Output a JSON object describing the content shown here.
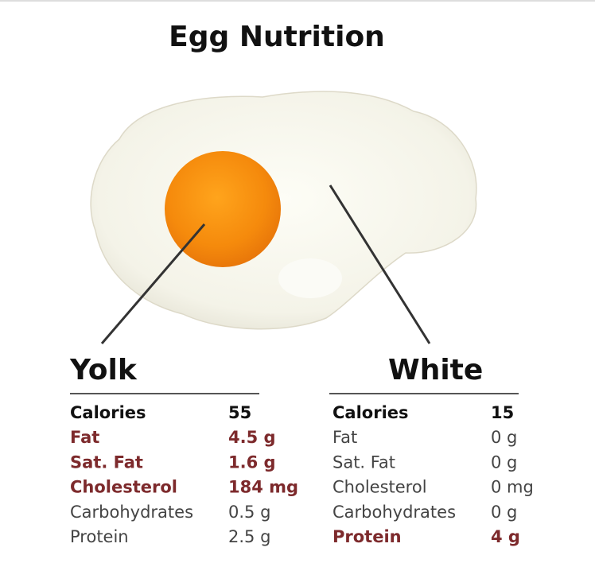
{
  "header": {
    "title": "Egg Nutrition"
  },
  "panels": [
    {
      "title": "Yolk",
      "rows": [
        {
          "label": "Calories",
          "value": "55",
          "style": "bold"
        },
        {
          "label": "Fat",
          "value": "4.5 g",
          "style": "highlight"
        },
        {
          "label": "Sat. Fat",
          "value": "1.6 g",
          "style": "highlight"
        },
        {
          "label": "Cholesterol",
          "value": "184 mg",
          "style": "highlight"
        },
        {
          "label": "Carbohydrates",
          "value": "0.5 g",
          "style": "plain"
        },
        {
          "label": "Protein",
          "value": "2.5 g",
          "style": "plain"
        }
      ]
    },
    {
      "title": "White",
      "rows": [
        {
          "label": "Calories",
          "value": "15",
          "style": "bold"
        },
        {
          "label": "Fat",
          "value": "0 g",
          "style": "plain"
        },
        {
          "label": "Sat. Fat",
          "value": "0 g",
          "style": "plain"
        },
        {
          "label": "Cholesterol",
          "value": "0 mg",
          "style": "plain"
        },
        {
          "label": "Carbohydrates",
          "value": "0 g",
          "style": "plain"
        },
        {
          "label": "Protein",
          "value": "4 g",
          "style": "highlight"
        }
      ]
    }
  ]
}
